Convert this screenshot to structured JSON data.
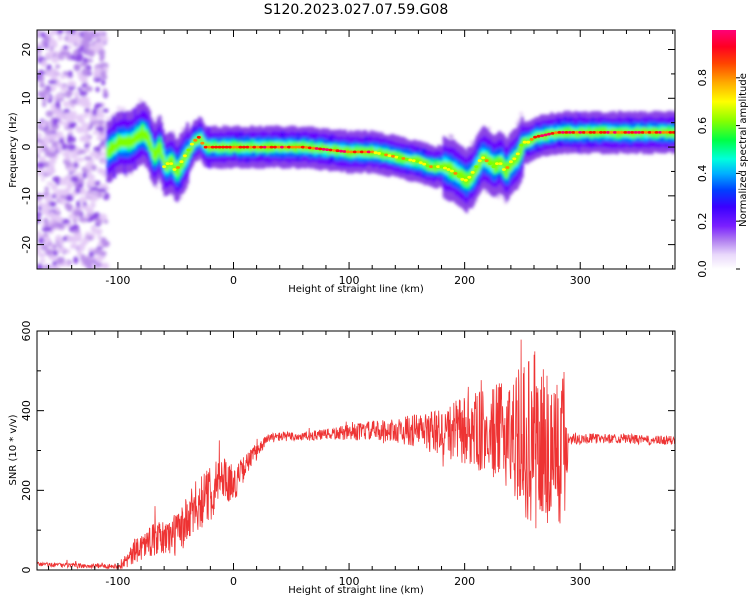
{
  "title": "S120.2023.027.07.59.G08",
  "colors": {
    "snr_line": "#ee3333",
    "axis": "#000000",
    "colormap": [
      "#f7f1ff",
      "#e3c8f6",
      "#b88ce9",
      "#8a45e6",
      "#6600ff",
      "#2000ff",
      "#0060ff",
      "#00e8ff",
      "#00ff6a",
      "#7fff00",
      "#ffff00",
      "#ff8800",
      "#ff1500",
      "#ff0066"
    ]
  },
  "chart_data": [
    {
      "type": "heatmap",
      "name": "spectrogram",
      "xlabel": "Height of straight line (km)",
      "ylabel": "Frequency (Hz)",
      "xlim": [
        -170,
        382
      ],
      "ylim": [
        -25,
        24
      ],
      "xticks": [
        -100,
        0,
        100,
        200,
        300
      ],
      "yticks": [
        -20,
        -10,
        0,
        10,
        20
      ],
      "xtick_labels": [
        "-100",
        "0",
        "100",
        "200",
        "300"
      ],
      "ytick_labels": [
        "-20",
        "-10",
        "0",
        "10",
        "20"
      ],
      "noise_region_x": [
        -170,
        -110
      ],
      "ridge": {
        "x": [
          -110,
          -100,
          -90,
          -80,
          -75,
          -70,
          -65,
          -60,
          -55,
          -50,
          -45,
          -40,
          -35,
          -30,
          -25,
          -20,
          0,
          30,
          60,
          100,
          120,
          140,
          160,
          170,
          180,
          190,
          195,
          200,
          205,
          210,
          215,
          220,
          225,
          230,
          235,
          240,
          245,
          250,
          255,
          260,
          280,
          300,
          320,
          340,
          360,
          382
        ],
        "freq": [
          -1,
          1,
          1,
          3,
          2,
          -2,
          0,
          -4,
          -3,
          -5,
          -3,
          -1,
          1,
          2,
          0,
          0,
          0,
          0,
          0,
          -1,
          -1,
          -2,
          -3,
          -4,
          -4,
          -5,
          -6,
          -7,
          -6,
          -4,
          -2,
          -3,
          -4,
          -3,
          -5,
          -3,
          -2,
          1,
          1,
          2,
          3,
          3,
          3,
          3,
          3,
          3
        ]
      },
      "colorbar": {
        "label": "Normalized spectral amplitude",
        "range": [
          0,
          1
        ],
        "ticks": [
          0.0,
          0.2,
          0.4,
          0.6,
          0.8
        ],
        "tick_labels": [
          "0.0",
          "0.2",
          "0.4",
          "0.6",
          "0.8"
        ]
      }
    },
    {
      "type": "line",
      "name": "snr",
      "xlabel": "Height of straight line (km)",
      "ylabel": "SNR (10 * v/v)",
      "xlim": [
        -170,
        382
      ],
      "ylim": [
        0,
        600
      ],
      "xticks": [
        -100,
        0,
        100,
        200,
        300
      ],
      "yticks": [
        0,
        200,
        400,
        600
      ],
      "xtick_labels": [
        "-100",
        "0",
        "100",
        "200",
        "300"
      ],
      "ytick_labels": [
        "0",
        "200",
        "400",
        "600"
      ],
      "series": [
        {
          "x": [
            -170,
            -150,
            -130,
            -100,
            -90,
            -80,
            -70,
            -60,
            -50,
            -40,
            -30,
            -20,
            -10,
            0,
            10,
            20,
            30,
            40,
            60,
            80,
            100,
            120,
            140,
            160,
            180,
            200,
            220,
            240,
            250,
            260,
            270,
            280,
            288,
            290,
            300,
            320,
            340,
            360,
            382
          ],
          "y": [
            15,
            12,
            10,
            10,
            30,
            60,
            75,
            80,
            90,
            120,
            170,
            190,
            240,
            210,
            260,
            300,
            330,
            335,
            335,
            340,
            345,
            350,
            350,
            350,
            345,
            350,
            345,
            345,
            330,
            320,
            310,
            300,
            310,
            330,
            330,
            330,
            330,
            325,
            325
          ],
          "spread": [
            6,
            6,
            6,
            6,
            25,
            35,
            40,
            45,
            55,
            65,
            70,
            70,
            55,
            45,
            30,
            20,
            12,
            12,
            12,
            14,
            20,
            25,
            30,
            45,
            60,
            90,
            110,
            140,
            190,
            230,
            230,
            210,
            200,
            20,
            14,
            12,
            12,
            12,
            12
          ]
        }
      ]
    }
  ]
}
